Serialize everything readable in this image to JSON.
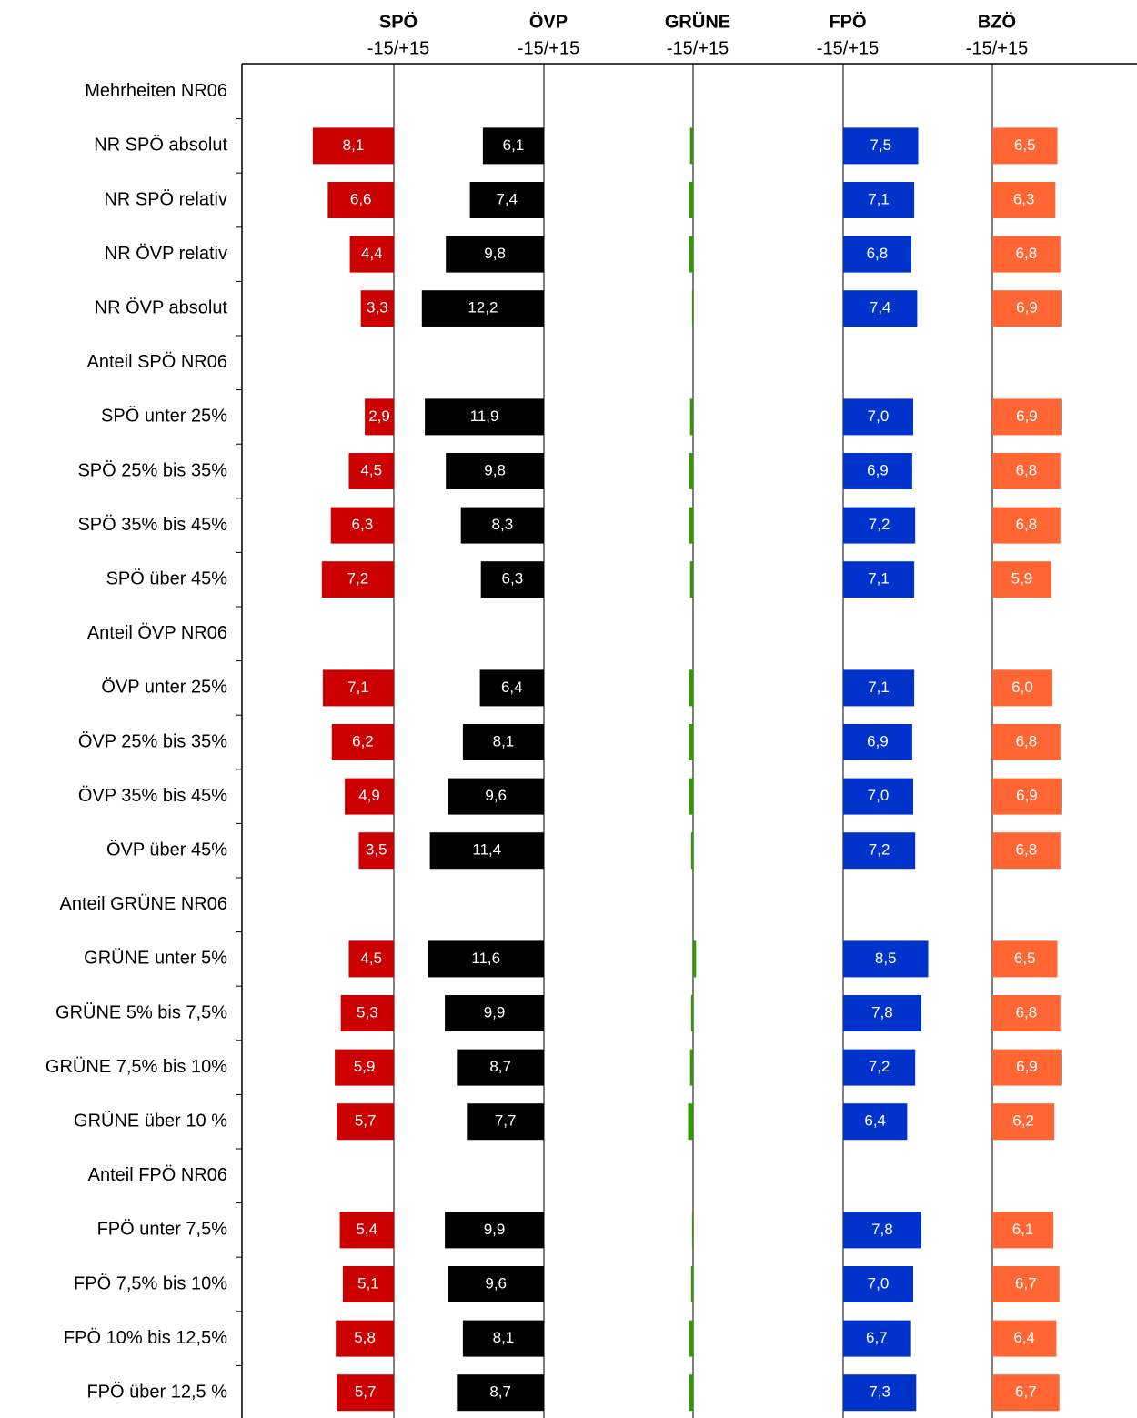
{
  "chart_data": {
    "type": "bar",
    "scale_label": "-15/+15",
    "xlim": [
      -15,
      15
    ],
    "categories": [
      "Mehrheiten NR06",
      "NR SPÖ absolut",
      "NR SPÖ relativ",
      "NR ÖVP relativ",
      "NR ÖVP absolut",
      "Anteil SPÖ NR06",
      "SPÖ unter 25%",
      "SPÖ 25% bis 35%",
      "SPÖ 35% bis 45%",
      "SPÖ über 45%",
      "Anteil ÖVP NR06",
      "ÖVP unter 25%",
      "ÖVP 25% bis 35%",
      "ÖVP 35% bis 45%",
      "ÖVP über 45%",
      "Anteil GRÜNE NR06",
      "GRÜNE unter 5%",
      "GRÜNE 5% bis 7,5%",
      "GRÜNE 7,5% bis 10%",
      "GRÜNE über 10 %",
      "Anteil FPÖ NR06",
      "FPÖ unter 7,5%",
      "FPÖ 7,5% bis 10%",
      "FPÖ 10% bis 12,5%",
      "FPÖ über 12,5 %"
    ],
    "series": [
      {
        "name": "SPÖ",
        "color": "#cc0000",
        "values": [
          null,
          -8.1,
          -6.6,
          -4.4,
          -3.3,
          null,
          -2.9,
          -4.5,
          -6.3,
          -7.2,
          null,
          -7.1,
          -6.2,
          -4.9,
          -3.5,
          null,
          -4.5,
          -5.3,
          -5.9,
          -5.7,
          null,
          -5.4,
          -5.1,
          -5.8,
          -5.7
        ],
        "value_labels": [
          null,
          "8,1",
          "6,6",
          "4,4",
          "3,3",
          null,
          "2,9",
          "4,5",
          "6,3",
          "7,2",
          null,
          "7,1",
          "6,2",
          "4,9",
          "3,5",
          null,
          "4,5",
          "5,3",
          "5,9",
          "5,7",
          null,
          "5,4",
          "5,1",
          "5,8",
          "5,7"
        ]
      },
      {
        "name": "ÖVP",
        "color": "#000000",
        "values": [
          null,
          -6.1,
          -7.4,
          -9.8,
          -12.2,
          null,
          -11.9,
          -9.8,
          -8.3,
          -6.3,
          null,
          -6.4,
          -8.1,
          -9.6,
          -11.4,
          null,
          -11.6,
          -9.9,
          -8.7,
          -7.7,
          null,
          -9.9,
          -9.6,
          -8.1,
          -8.7
        ],
        "value_labels": [
          null,
          "6,1",
          "7,4",
          "9,8",
          "12,2",
          null,
          "11,9",
          "9,8",
          "8,3",
          "6,3",
          null,
          "6,4",
          "8,1",
          "9,6",
          "11,4",
          null,
          "11,6",
          "9,9",
          "8,7",
          "7,7",
          null,
          "9,9",
          "9,6",
          "8,1",
          "8,7"
        ]
      },
      {
        "name": "GRÜNE",
        "color": "#339900",
        "values": [
          null,
          -0.3,
          -0.4,
          -0.4,
          -0.1,
          null,
          -0.3,
          -0.4,
          -0.4,
          -0.3,
          null,
          -0.4,
          -0.4,
          -0.4,
          -0.2,
          null,
          0.3,
          -0.2,
          -0.3,
          -0.5,
          null,
          -0.1,
          -0.2,
          -0.4,
          -0.4
        ]
      },
      {
        "name": "FPÖ",
        "color": "#0033cc",
        "values": [
          null,
          7.5,
          7.1,
          6.8,
          7.4,
          null,
          7.0,
          6.9,
          7.2,
          7.1,
          null,
          7.1,
          6.9,
          7.0,
          7.2,
          null,
          8.5,
          7.8,
          7.2,
          6.4,
          null,
          7.8,
          7.0,
          6.7,
          7.3
        ],
        "value_labels": [
          null,
          "7,5",
          "7,1",
          "6,8",
          "7,4",
          null,
          "7,0",
          "6,9",
          "7,2",
          "7,1",
          null,
          "7,1",
          "6,9",
          "7,0",
          "7,2",
          null,
          "8,5",
          "7,8",
          "7,2",
          "6,4",
          null,
          "7,8",
          "7,0",
          "6,7",
          "7,3"
        ]
      },
      {
        "name": "BZÖ",
        "color": "#ff6633",
        "values": [
          null,
          6.5,
          6.3,
          6.8,
          6.9,
          null,
          6.9,
          6.8,
          6.8,
          5.9,
          null,
          6.0,
          6.8,
          6.9,
          6.8,
          null,
          6.5,
          6.8,
          6.9,
          6.2,
          null,
          6.1,
          6.7,
          6.4,
          6.7
        ],
        "value_labels": [
          null,
          "6,5",
          "6,3",
          "6,8",
          "6,9",
          null,
          "6,9",
          "6,8",
          "6,8",
          "5,9",
          null,
          "6,0",
          "6,8",
          "6,9",
          "6,8",
          null,
          "6,5",
          "6,8",
          "6,9",
          "6,2",
          null,
          "6,1",
          "6,7",
          "6,4",
          "6,7"
        ]
      }
    ]
  }
}
